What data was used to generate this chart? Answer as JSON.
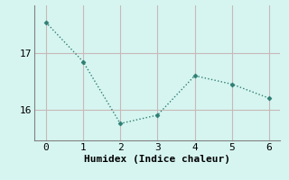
{
  "x": [
    0,
    1,
    2,
    3,
    4,
    5,
    6
  ],
  "y": [
    17.55,
    16.85,
    15.75,
    15.9,
    16.6,
    16.45,
    16.2
  ],
  "line_color": "#2e7d72",
  "marker": "D",
  "marker_size": 2.5,
  "linewidth": 1.0,
  "linestyle": "dotted",
  "xlabel": "Humidex (Indice chaleur)",
  "ylabel": "",
  "title": "",
  "xlim": [
    -0.3,
    6.3
  ],
  "ylim": [
    15.45,
    17.85
  ],
  "yticks": [
    16,
    17
  ],
  "xticks": [
    0,
    1,
    2,
    3,
    4,
    5,
    6
  ],
  "bg_color": "#d6f5f0",
  "grid_color": "#c8b8b8",
  "spine_color": "#808080",
  "font_color": "#000000",
  "xlabel_fontsize": 8,
  "tick_fontsize": 8,
  "font_family": "monospace"
}
